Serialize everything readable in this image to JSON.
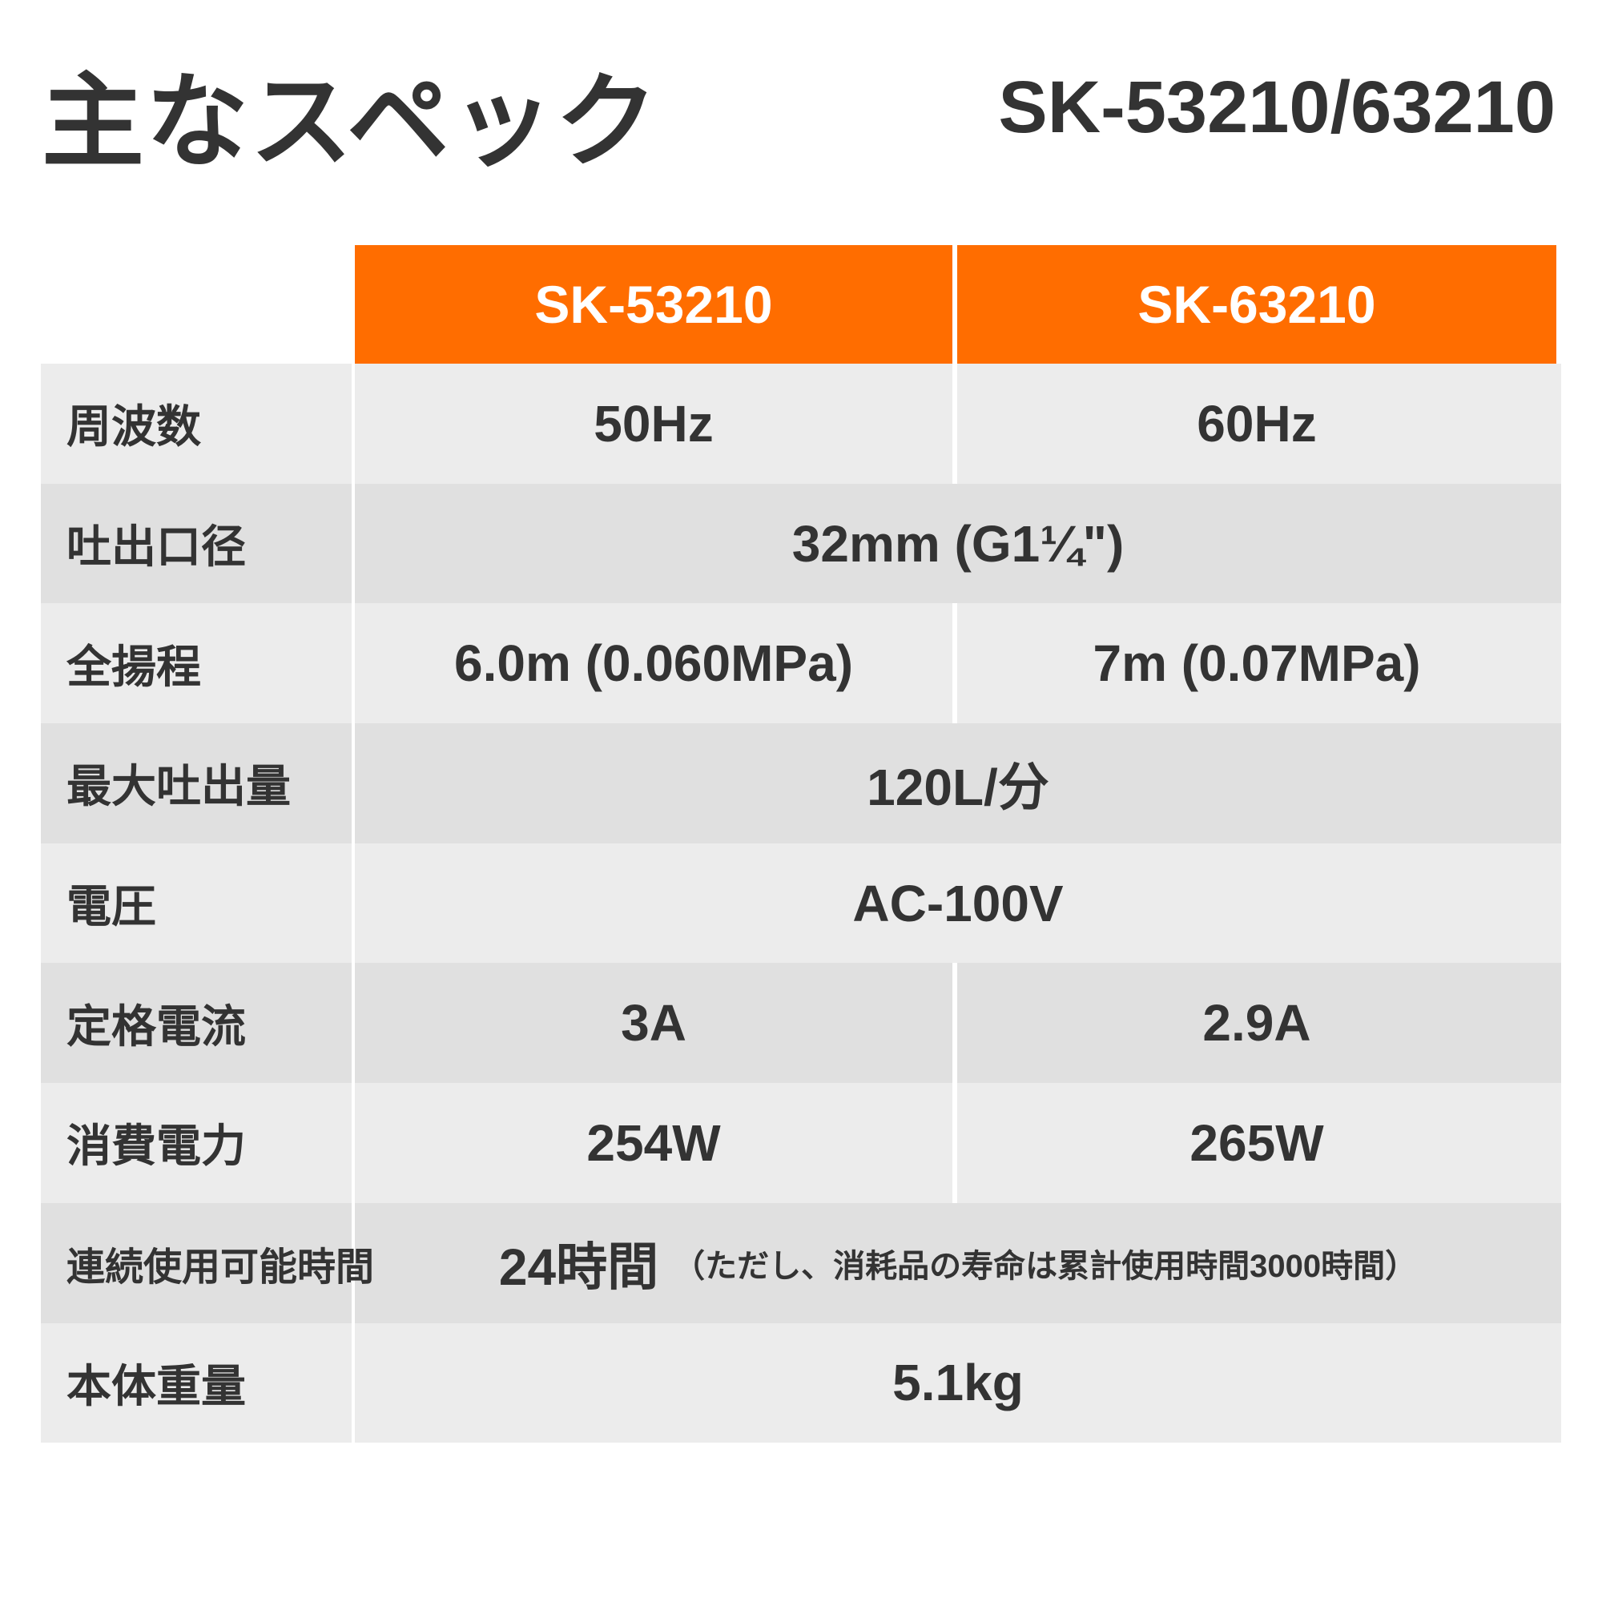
{
  "title": "主なスペック",
  "model_numbers": "SK-53210/63210",
  "colors": {
    "header": "#ff6d00",
    "row_light": "#ececec",
    "row_dark": "#e0e0e0",
    "text": "#333333"
  },
  "table": {
    "headers": [
      "SK-53210",
      "SK-63210"
    ],
    "rows": [
      {
        "label": "周波数",
        "values": [
          "50Hz",
          "60Hz"
        ]
      },
      {
        "label": "吐出口径",
        "value": "32mm (G1¼\")"
      },
      {
        "label": "全揚程",
        "values": [
          "6.0m (0.060MPa)",
          "7m (0.07MPa)"
        ]
      },
      {
        "label": "最大吐出量",
        "value": "120L/分"
      },
      {
        "label": "電圧",
        "value": "AC-100V"
      },
      {
        "label": "定格電流",
        "values": [
          "3A",
          "2.9A"
        ]
      },
      {
        "label": "消費電力",
        "values": [
          "254W",
          "265W"
        ]
      },
      {
        "label": "連続使用可能時間",
        "value": "24時間",
        "note": "（ただし、消耗品の寿命は累計使用時間3000時間）"
      },
      {
        "label": "本体重量",
        "value": "5.1kg"
      }
    ]
  }
}
